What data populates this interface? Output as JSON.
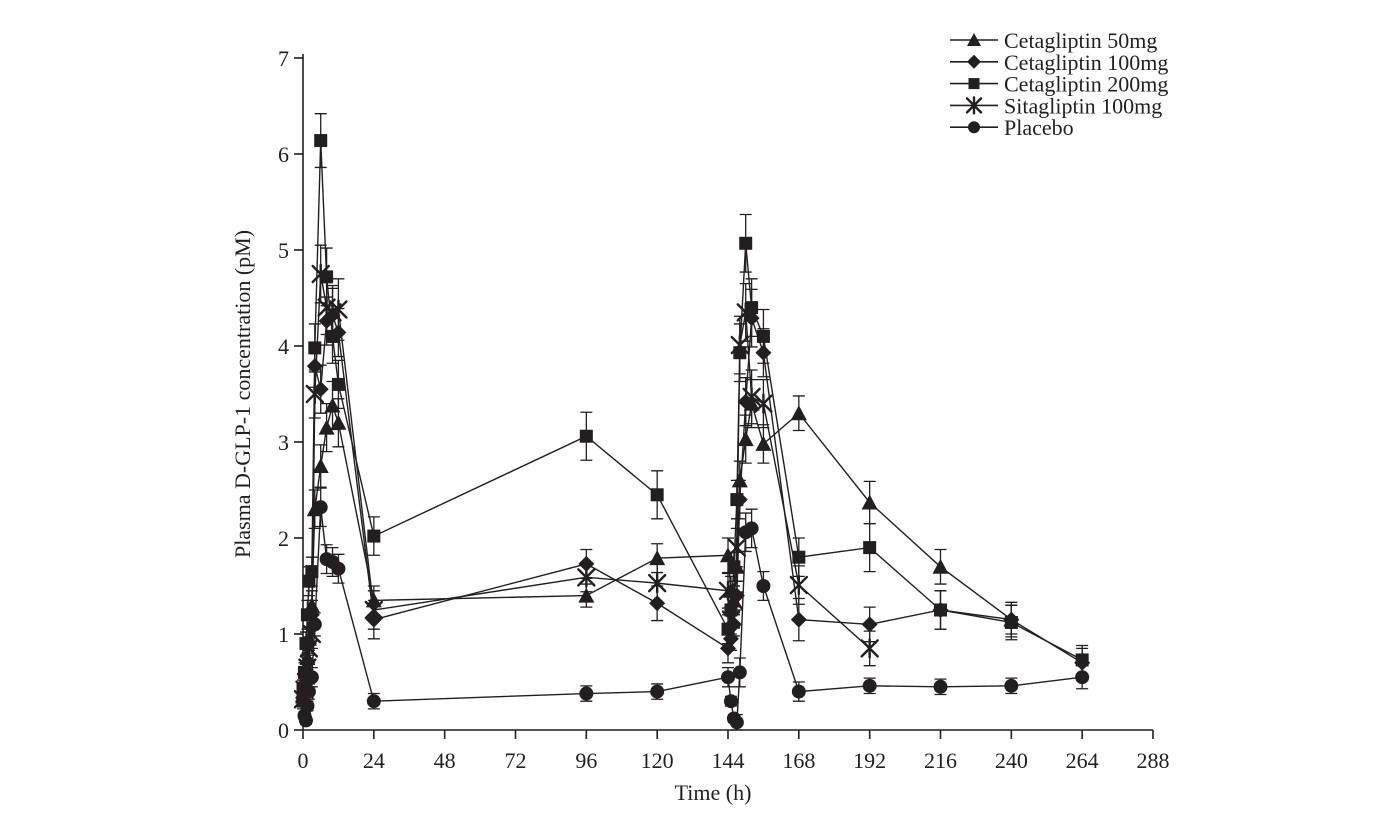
{
  "figure": {
    "background": "#ffffff",
    "ink": "#231f20"
  },
  "chart_data": {
    "type": "line",
    "title": "",
    "xlabel": "Time (h)",
    "ylabel": "Plasma D-GLP-1 concentration (pM)",
    "xlim": [
      0,
      288
    ],
    "ylim": [
      0,
      7
    ],
    "xticks": [
      0,
      24,
      48,
      72,
      96,
      120,
      144,
      168,
      192,
      216,
      240,
      264,
      288
    ],
    "yticks": [
      0,
      1,
      2,
      3,
      4,
      5,
      6,
      7
    ],
    "grid": false,
    "legend_position": "top-right",
    "marker_color": "#231f20",
    "series": [
      {
        "name": "Cetagliptin 50mg",
        "marker": "triangle",
        "x": [
          0,
          0.5,
          1,
          1.5,
          2,
          3,
          4,
          6,
          8,
          10,
          12,
          24,
          96,
          120,
          144,
          145,
          146,
          147,
          148,
          150,
          152,
          156,
          168,
          192,
          216,
          240
        ],
        "y": [
          0.35,
          0.45,
          0.55,
          0.75,
          0.95,
          1.3,
          2.3,
          2.75,
          3.15,
          3.38,
          3.2,
          1.35,
          1.4,
          1.79,
          1.82,
          1.45,
          1.35,
          1.7,
          2.6,
          3.03,
          3.4,
          2.98,
          3.3,
          2.37,
          1.7,
          1.15
        ],
        "err": [
          0.1,
          0.1,
          0.1,
          0.12,
          0.12,
          0.15,
          0.2,
          0.22,
          0.25,
          0.25,
          0.25,
          0.15,
          0.12,
          0.15,
          0.18,
          0.15,
          0.15,
          0.15,
          0.2,
          0.25,
          0.25,
          0.2,
          0.18,
          0.22,
          0.18,
          0.15
        ]
      },
      {
        "name": "Cetagliptin 100mg",
        "marker": "diamond",
        "x": [
          0,
          0.5,
          1,
          1.5,
          2,
          3,
          4,
          6,
          8,
          10,
          12,
          24,
          96,
          120,
          144,
          145,
          146,
          147,
          148,
          150,
          152,
          156,
          168,
          192,
          216,
          240,
          264
        ],
        "y": [
          0.3,
          0.4,
          0.55,
          0.7,
          0.9,
          1.2,
          3.79,
          3.55,
          4.26,
          4.32,
          4.14,
          1.15,
          1.73,
          1.32,
          0.85,
          0.95,
          1.1,
          1.4,
          2.4,
          3.42,
          4.29,
          3.93,
          1.15,
          1.1,
          1.25,
          1.15,
          0.7
        ],
        "err": [
          0.08,
          0.1,
          0.1,
          0.1,
          0.12,
          0.15,
          0.22,
          0.25,
          0.25,
          0.28,
          0.25,
          0.2,
          0.15,
          0.18,
          0.15,
          0.12,
          0.12,
          0.15,
          0.2,
          0.25,
          0.3,
          0.25,
          0.22,
          0.18,
          0.2,
          0.18,
          0.15
        ]
      },
      {
        "name": "Cetagliptin 200mg",
        "marker": "square",
        "x": [
          0,
          0.5,
          1,
          1.5,
          2,
          3,
          4,
          6,
          8,
          10,
          12,
          24,
          96,
          120,
          144,
          145,
          146,
          147,
          148,
          150,
          152,
          156,
          168,
          192,
          216,
          240,
          264
        ],
        "y": [
          0.42,
          0.6,
          0.9,
          1.2,
          1.55,
          1.65,
          3.98,
          6.14,
          4.72,
          4.1,
          3.6,
          2.02,
          3.06,
          2.45,
          1.05,
          1.25,
          1.7,
          2.4,
          3.93,
          5.07,
          4.4,
          4.1,
          1.8,
          1.9,
          1.25,
          1.12,
          0.73
        ],
        "err": [
          0.1,
          0.1,
          0.12,
          0.15,
          0.15,
          0.15,
          0.25,
          0.28,
          0.3,
          0.28,
          0.25,
          0.2,
          0.25,
          0.25,
          0.15,
          0.15,
          0.15,
          0.2,
          0.3,
          0.3,
          0.3,
          0.28,
          0.2,
          0.25,
          0.2,
          0.18,
          0.15
        ]
      },
      {
        "name": "Sitagliptin 100mg",
        "marker": "star",
        "x": [
          0,
          0.5,
          1,
          1.5,
          2,
          3,
          4,
          6,
          8,
          10,
          12,
          24,
          96,
          120,
          144,
          145,
          146,
          147,
          148,
          150,
          152,
          156,
          168,
          192
        ],
        "y": [
          0.32,
          0.42,
          0.5,
          0.65,
          0.85,
          1.0,
          3.5,
          4.75,
          4.4,
          4.35,
          4.38,
          1.25,
          1.59,
          1.53,
          1.45,
          1.15,
          1.35,
          1.9,
          4.01,
          4.35,
          3.47,
          3.4,
          1.51,
          0.85
        ],
        "err": [
          0.08,
          0.1,
          0.1,
          0.1,
          0.12,
          0.15,
          0.25,
          0.3,
          0.28,
          0.28,
          0.32,
          0.2,
          0.15,
          0.2,
          0.18,
          0.15,
          0.15,
          0.2,
          0.3,
          0.3,
          0.28,
          0.25,
          0.2,
          0.18
        ]
      },
      {
        "name": "Placebo",
        "marker": "circle",
        "x": [
          0,
          0.5,
          1,
          1.5,
          2,
          3,
          4,
          6,
          8,
          10,
          12,
          24,
          96,
          120,
          144,
          145,
          146,
          147,
          148,
          150,
          152,
          156,
          168,
          192,
          216,
          240,
          264
        ],
        "y": [
          0.3,
          0.15,
          0.1,
          0.25,
          0.4,
          0.55,
          1.1,
          2.32,
          1.78,
          1.75,
          1.68,
          0.3,
          0.38,
          0.4,
          0.55,
          0.3,
          0.12,
          0.08,
          0.6,
          2.06,
          2.1,
          1.5,
          0.4,
          0.46,
          0.45,
          0.46,
          0.55
        ],
        "err": [
          0.05,
          0.04,
          0.04,
          0.05,
          0.08,
          0.1,
          0.12,
          0.2,
          0.15,
          0.15,
          0.15,
          0.08,
          0.08,
          0.08,
          0.1,
          0.05,
          0.04,
          0.08,
          0.15,
          0.2,
          0.2,
          0.15,
          0.1,
          0.08,
          0.08,
          0.08,
          0.12
        ]
      }
    ]
  }
}
